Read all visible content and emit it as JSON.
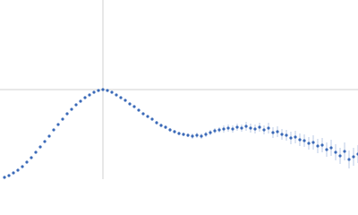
{
  "chart_data": {
    "type": "scatter",
    "xlim": [
      0,
      400
    ],
    "ylim": [
      0,
      200
    ],
    "vline": 115,
    "hline": 100,
    "ref_color": "#d0d0d0",
    "series": [
      {
        "color": "#3b6ab8",
        "error_color": "#a9bde0",
        "x": [
          5,
          10,
          15,
          20,
          25,
          30,
          35,
          40,
          45,
          50,
          55,
          60,
          65,
          70,
          75,
          80,
          85,
          90,
          95,
          100,
          105,
          110,
          115,
          120,
          125,
          130,
          135,
          140,
          145,
          150,
          155,
          160,
          165,
          170,
          175,
          180,
          185,
          190,
          195,
          200,
          205,
          210,
          215,
          220,
          225,
          230,
          235,
          240,
          245,
          250,
          255,
          260,
          265,
          270,
          275,
          280,
          285,
          290,
          295,
          300,
          305,
          310,
          315,
          320,
          325,
          330,
          335,
          340,
          345,
          350,
          355,
          360,
          365,
          370,
          375,
          380,
          385,
          390,
          395,
          400
        ],
        "values": [
          2,
          4,
          7,
          10,
          14,
          19,
          24,
          30,
          36,
          42,
          48,
          55,
          61,
          67,
          73,
          78,
          83,
          87,
          91,
          94,
          97,
          99,
          100,
          99,
          97,
          94,
          91,
          88,
          84,
          81,
          77,
          73,
          70,
          67,
          63,
          60,
          58,
          55,
          53,
          51,
          50,
          49,
          48,
          49,
          48,
          50,
          52,
          54,
          55,
          56,
          57,
          56,
          58,
          57,
          59,
          57,
          56,
          58,
          55,
          57,
          52,
          53,
          50,
          49,
          46,
          47,
          44,
          43,
          40,
          41,
          37,
          38,
          33,
          35,
          30,
          26,
          31,
          22,
          25,
          28
        ],
        "errors": [
          1,
          1,
          1,
          1,
          1,
          1,
          1,
          1,
          1,
          1,
          1,
          1,
          1,
          1,
          1,
          1,
          1,
          1,
          1,
          1,
          1,
          1,
          1,
          1,
          1,
          1,
          1,
          1,
          1,
          1,
          1,
          1,
          1,
          1,
          2,
          2,
          2,
          2,
          2,
          2,
          2,
          2,
          3,
          3,
          3,
          3,
          3,
          3,
          3,
          4,
          4,
          4,
          4,
          4,
          5,
          5,
          5,
          5,
          5,
          6,
          6,
          6,
          6,
          6,
          7,
          7,
          7,
          7,
          7,
          8,
          8,
          8,
          8,
          9,
          9,
          9,
          10,
          10,
          10,
          10
        ]
      }
    ]
  }
}
